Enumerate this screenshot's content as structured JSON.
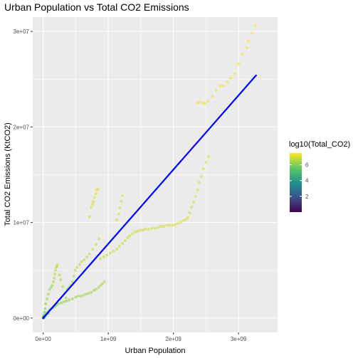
{
  "chart_data": {
    "type": "scatter",
    "title": "Urban Population vs Total CO2 Emissions",
    "xlabel": "Urban Population",
    "ylabel": "Total CO2 Emissions (KtCO2)",
    "xlim": [
      -160000000.0,
      3600000000.0
    ],
    "ylim": [
      -1500000.0,
      31500000.0
    ],
    "x_ticks": [
      {
        "value": 0,
        "label": "0e+00"
      },
      {
        "value": 1000000000.0,
        "label": "1e+09"
      },
      {
        "value": 2000000000.0,
        "label": "2e+09"
      },
      {
        "value": 3000000000.0,
        "label": "3e+09"
      }
    ],
    "y_ticks": [
      {
        "value": 0,
        "label": "0e+00"
      },
      {
        "value": 10000000.0,
        "label": "1e+07"
      },
      {
        "value": 20000000.0,
        "label": "2e+07"
      },
      {
        "value": 30000000.0,
        "label": "3e+07"
      }
    ],
    "grid": true,
    "color_scale": {
      "title": "log10(Total_CO2)",
      "palette": "viridis",
      "range": [
        0,
        7.5
      ],
      "ticks": [
        {
          "value": 2,
          "label": "2"
        },
        {
          "value": 4,
          "label": "4"
        },
        {
          "value": 6,
          "label": "6"
        }
      ]
    },
    "trend_line": {
      "from": [
        0,
        0
      ],
      "to": [
        3270000000.0,
        25400000.0
      ],
      "color": "#0000ff"
    },
    "points": [
      [
        3260000000.0,
        30600000.0
      ],
      [
        3210000000.0,
        29800000.0
      ],
      [
        3150000000.0,
        29000000.0
      ],
      [
        3130000000.0,
        28300000.0
      ],
      [
        3060000000.0,
        27600000.0
      ],
      [
        3000000000.0,
        26600000.0
      ],
      [
        2940000000.0,
        25600000.0
      ],
      [
        2880000000.0,
        25100000.0
      ],
      [
        2830000000.0,
        24700000.0
      ],
      [
        2760000000.0,
        24300000.0
      ],
      [
        2720000000.0,
        24300000.0
      ],
      [
        2660000000.0,
        23800000.0
      ],
      [
        2600000000.0,
        23200000.0
      ],
      [
        2530000000.0,
        22700000.0
      ],
      [
        2490000000.0,
        22500000.0
      ],
      [
        2460000000.0,
        22500000.0
      ],
      [
        2410000000.0,
        22600000.0
      ],
      [
        2370000000.0,
        22500000.0
      ],
      [
        2540000000.0,
        16900000.0
      ],
      [
        2500000000.0,
        16300000.0
      ],
      [
        2460000000.0,
        15600000.0
      ],
      [
        2430000000.0,
        14800000.0
      ],
      [
        2400000000.0,
        14200000.0
      ],
      [
        2370000000.0,
        13400000.0
      ],
      [
        2340000000.0,
        12700000.0
      ],
      [
        2310000000.0,
        12100000.0
      ],
      [
        2280000000.0,
        11600000.0
      ],
      [
        2250000000.0,
        11000000.0
      ],
      [
        2220000000.0,
        10500000.0
      ],
      [
        2190000000.0,
        10300000.0
      ],
      [
        2150000000.0,
        10200000.0
      ],
      [
        2110000000.0,
        10000000.0
      ],
      [
        2070000000.0,
        9900000.0
      ],
      [
        2030000000.0,
        9800000.0
      ],
      [
        1990000000.0,
        9700000.0
      ],
      [
        1940000000.0,
        9700000.0
      ],
      [
        1900000000.0,
        9700000.0
      ],
      [
        1850000000.0,
        9600000.0
      ],
      [
        1810000000.0,
        9600000.0
      ],
      [
        1770000000.0,
        9500000.0
      ],
      [
        1720000000.0,
        9400000.0
      ],
      [
        1670000000.0,
        9400000.0
      ],
      [
        1620000000.0,
        9300000.0
      ],
      [
        1570000000.0,
        9300000.0
      ],
      [
        1530000000.0,
        9200000.0
      ],
      [
        1490000000.0,
        9200000.0
      ],
      [
        1450000000.0,
        9100000.0
      ],
      [
        1410000000.0,
        9000000.0
      ],
      [
        1370000000.0,
        8800000.0
      ],
      [
        1330000000.0,
        8600000.0
      ],
      [
        1300000000.0,
        8400000.0
      ],
      [
        1260000000.0,
        8100000.0
      ],
      [
        1220000000.0,
        7800000.0
      ],
      [
        1170000000.0,
        7500000.0
      ],
      [
        1130000000.0,
        7200000.0
      ],
      [
        1080000000.0,
        7000000.0
      ],
      [
        1030000000.0,
        6800000.0
      ],
      [
        980000000.0,
        6600000.0
      ],
      [
        930000000.0,
        6400000.0
      ],
      [
        880000000.0,
        6200000.0
      ],
      [
        1220000000.0,
        12800000.0
      ],
      [
        1200000000.0,
        12200000.0
      ],
      [
        1180000000.0,
        11500000.0
      ],
      [
        1160000000.0,
        10900000.0
      ],
      [
        1130000000.0,
        10300000.0
      ],
      [
        840000000.0,
        13500000.0
      ],
      [
        820000000.0,
        13400000.0
      ],
      [
        810000000.0,
        13000000.0
      ],
      [
        790000000.0,
        12600000.0
      ],
      [
        770000000.0,
        12200000.0
      ],
      [
        760000000.0,
        11900000.0
      ],
      [
        740000000.0,
        11600000.0
      ],
      [
        710000000.0,
        10600000.0
      ],
      [
        860000000.0,
        8300000.0
      ],
      [
        810000000.0,
        7700000.0
      ],
      [
        760000000.0,
        7200000.0
      ],
      [
        710000000.0,
        6700000.0
      ],
      [
        670000000.0,
        6400000.0
      ],
      [
        630000000.0,
        6100000.0
      ],
      [
        590000000.0,
        5900000.0
      ],
      [
        560000000.0,
        5600000.0
      ],
      [
        520000000.0,
        5300000.0
      ],
      [
        490000000.0,
        5000000.0
      ],
      [
        470000000.0,
        4400000.0
      ],
      [
        450000000.0,
        3800000.0
      ],
      [
        420000000.0,
        3400000.0
      ],
      [
        400000000.0,
        3200000.0
      ],
      [
        370000000.0,
        3000000.0
      ],
      [
        940000000.0,
        3800000.0
      ],
      [
        910000000.0,
        3600000.0
      ],
      [
        880000000.0,
        3400000.0
      ],
      [
        850000000.0,
        3200000.0
      ],
      [
        810000000.0,
        3000000.0
      ],
      [
        780000000.0,
        2900000.0
      ],
      [
        740000000.0,
        2700000.0
      ],
      [
        700000000.0,
        2600000.0
      ],
      [
        660000000.0,
        2500000.0
      ],
      [
        620000000.0,
        2400000.0
      ],
      [
        580000000.0,
        2300000.0
      ],
      [
        540000000.0,
        2300000.0
      ],
      [
        500000000.0,
        2200000.0
      ],
      [
        450000000.0,
        2000000.0
      ],
      [
        400000000.0,
        1900000.0
      ],
      [
        360000000.0,
        1800000.0
      ],
      [
        320000000.0,
        1700000.0
      ],
      [
        280000000.0,
        1600000.0
      ],
      [
        240000000.0,
        1500000.0
      ],
      [
        210000000.0,
        1400000.0
      ],
      [
        190000000.0,
        1300000.0
      ],
      [
        170000000.0,
        1200000.0
      ],
      [
        150000000.0,
        1100000.0
      ],
      [
        130000000.0,
        1000000.0
      ],
      [
        110000000.0,
        900000.0
      ],
      [
        90000000.0,
        800000.0
      ],
      [
        220000000.0,
        5600000.0
      ],
      [
        210000000.0,
        5400000.0
      ],
      [
        200000000.0,
        5300000.0
      ],
      [
        190000000.0,
        5000000.0
      ],
      [
        180000000.0,
        4600000.0
      ],
      [
        170000000.0,
        4200000.0
      ],
      [
        160000000.0,
        3800000.0
      ],
      [
        140000000.0,
        3400000.0
      ],
      [
        120000000.0,
        3200000.0
      ],
      [
        100000000.0,
        3000000.0
      ],
      [
        80000000.0,
        2500000.0
      ],
      [
        60000000.0,
        2000000.0
      ],
      [
        40000000.0,
        1500000.0
      ],
      [
        30000000.0,
        1000000.0
      ],
      [
        20000000.0,
        600000.0
      ],
      [
        10000000.0,
        300000.0
      ],
      [
        250000000.0,
        4500000.0
      ],
      [
        270000000.0,
        4000000.0
      ],
      [
        300000000.0,
        3300000.0
      ],
      [
        330000000.0,
        2600000.0
      ],
      [
        350000000.0,
        2100000.0
      ],
      [
        5000000.0,
        100000.0
      ],
      [
        10000000.0,
        80000.0
      ],
      [
        15000000.0,
        200000.0
      ],
      [
        20000000.0,
        150000.0
      ],
      [
        30000000.0,
        250000.0
      ],
      [
        40000000.0,
        300000.0
      ],
      [
        50000000.0,
        400000.0
      ],
      [
        60000000.0,
        500000.0
      ],
      [
        70000000.0,
        600000.0
      ],
      [
        80000000.0,
        500000.0
      ],
      [
        3000000.0,
        30000.0
      ],
      [
        8000000.0,
        40000.0
      ],
      [
        12000000.0,
        60000.0
      ],
      [
        2000000.0,
        10000.0
      ],
      [
        18000000.0,
        100000.0
      ]
    ]
  }
}
